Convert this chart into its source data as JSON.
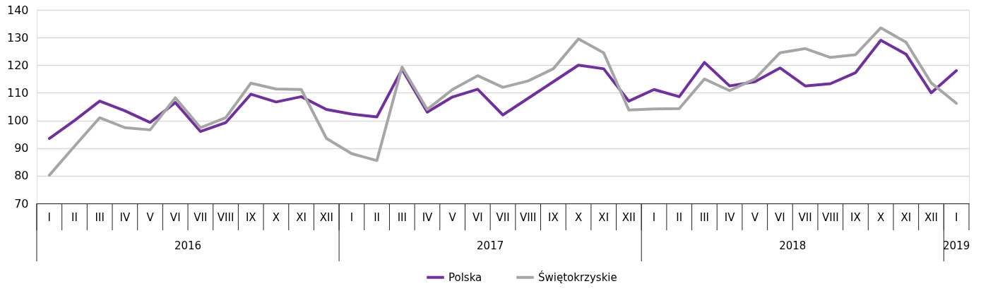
{
  "chart_data": {
    "type": "line",
    "categories": [
      "I",
      "II",
      "III",
      "IV",
      "V",
      "VI",
      "VII",
      "VIII",
      "IX",
      "X",
      "XI",
      "XII",
      "I",
      "II",
      "III",
      "IV",
      "V",
      "VI",
      "VII",
      "VIII",
      "IX",
      "X",
      "XI",
      "XII",
      "I",
      "II",
      "III",
      "IV",
      "V",
      "VI",
      "VII",
      "VIII",
      "IX",
      "X",
      "XI",
      "XII",
      "I"
    ],
    "series": [
      {
        "name": "Polska",
        "color": "#7030a0",
        "values": [
          93.5,
          100,
          107,
          103.5,
          99.3,
          106.5,
          96,
          99.2,
          109.5,
          106.7,
          108.6,
          104,
          102.3,
          101.3,
          118.5,
          103,
          108.5,
          111.3,
          102,
          108,
          114,
          120,
          118.7,
          107,
          111.2,
          108.6,
          121,
          112.5,
          114,
          119,
          112.5,
          113.3,
          117.3,
          129,
          124,
          110,
          118
        ]
      },
      {
        "name": "Świętokrzyskie",
        "color": "#a6a6a6",
        "values": [
          80.2,
          90.7,
          101,
          97.4,
          96.6,
          108.2,
          97.4,
          101,
          113.5,
          111.4,
          111.2,
          93.5,
          88,
          85.5,
          119.3,
          104,
          111.2,
          116.2,
          112,
          114.3,
          118.7,
          129.5,
          124.5,
          103.8,
          104.2,
          104.3,
          115,
          110.8,
          115,
          124.5,
          126,
          122.8,
          123.8,
          133.5,
          128.3,
          113.6,
          106.2
        ]
      }
    ],
    "annotations": [
      "2016",
      "2017",
      "2018",
      "2019"
    ],
    "ylim": [
      70,
      140
    ],
    "yticks": [
      70,
      80,
      90,
      100,
      110,
      120,
      130,
      140
    ],
    "grid": "y",
    "legend": "bottom",
    "line_style": "solid",
    "marker": "none"
  }
}
